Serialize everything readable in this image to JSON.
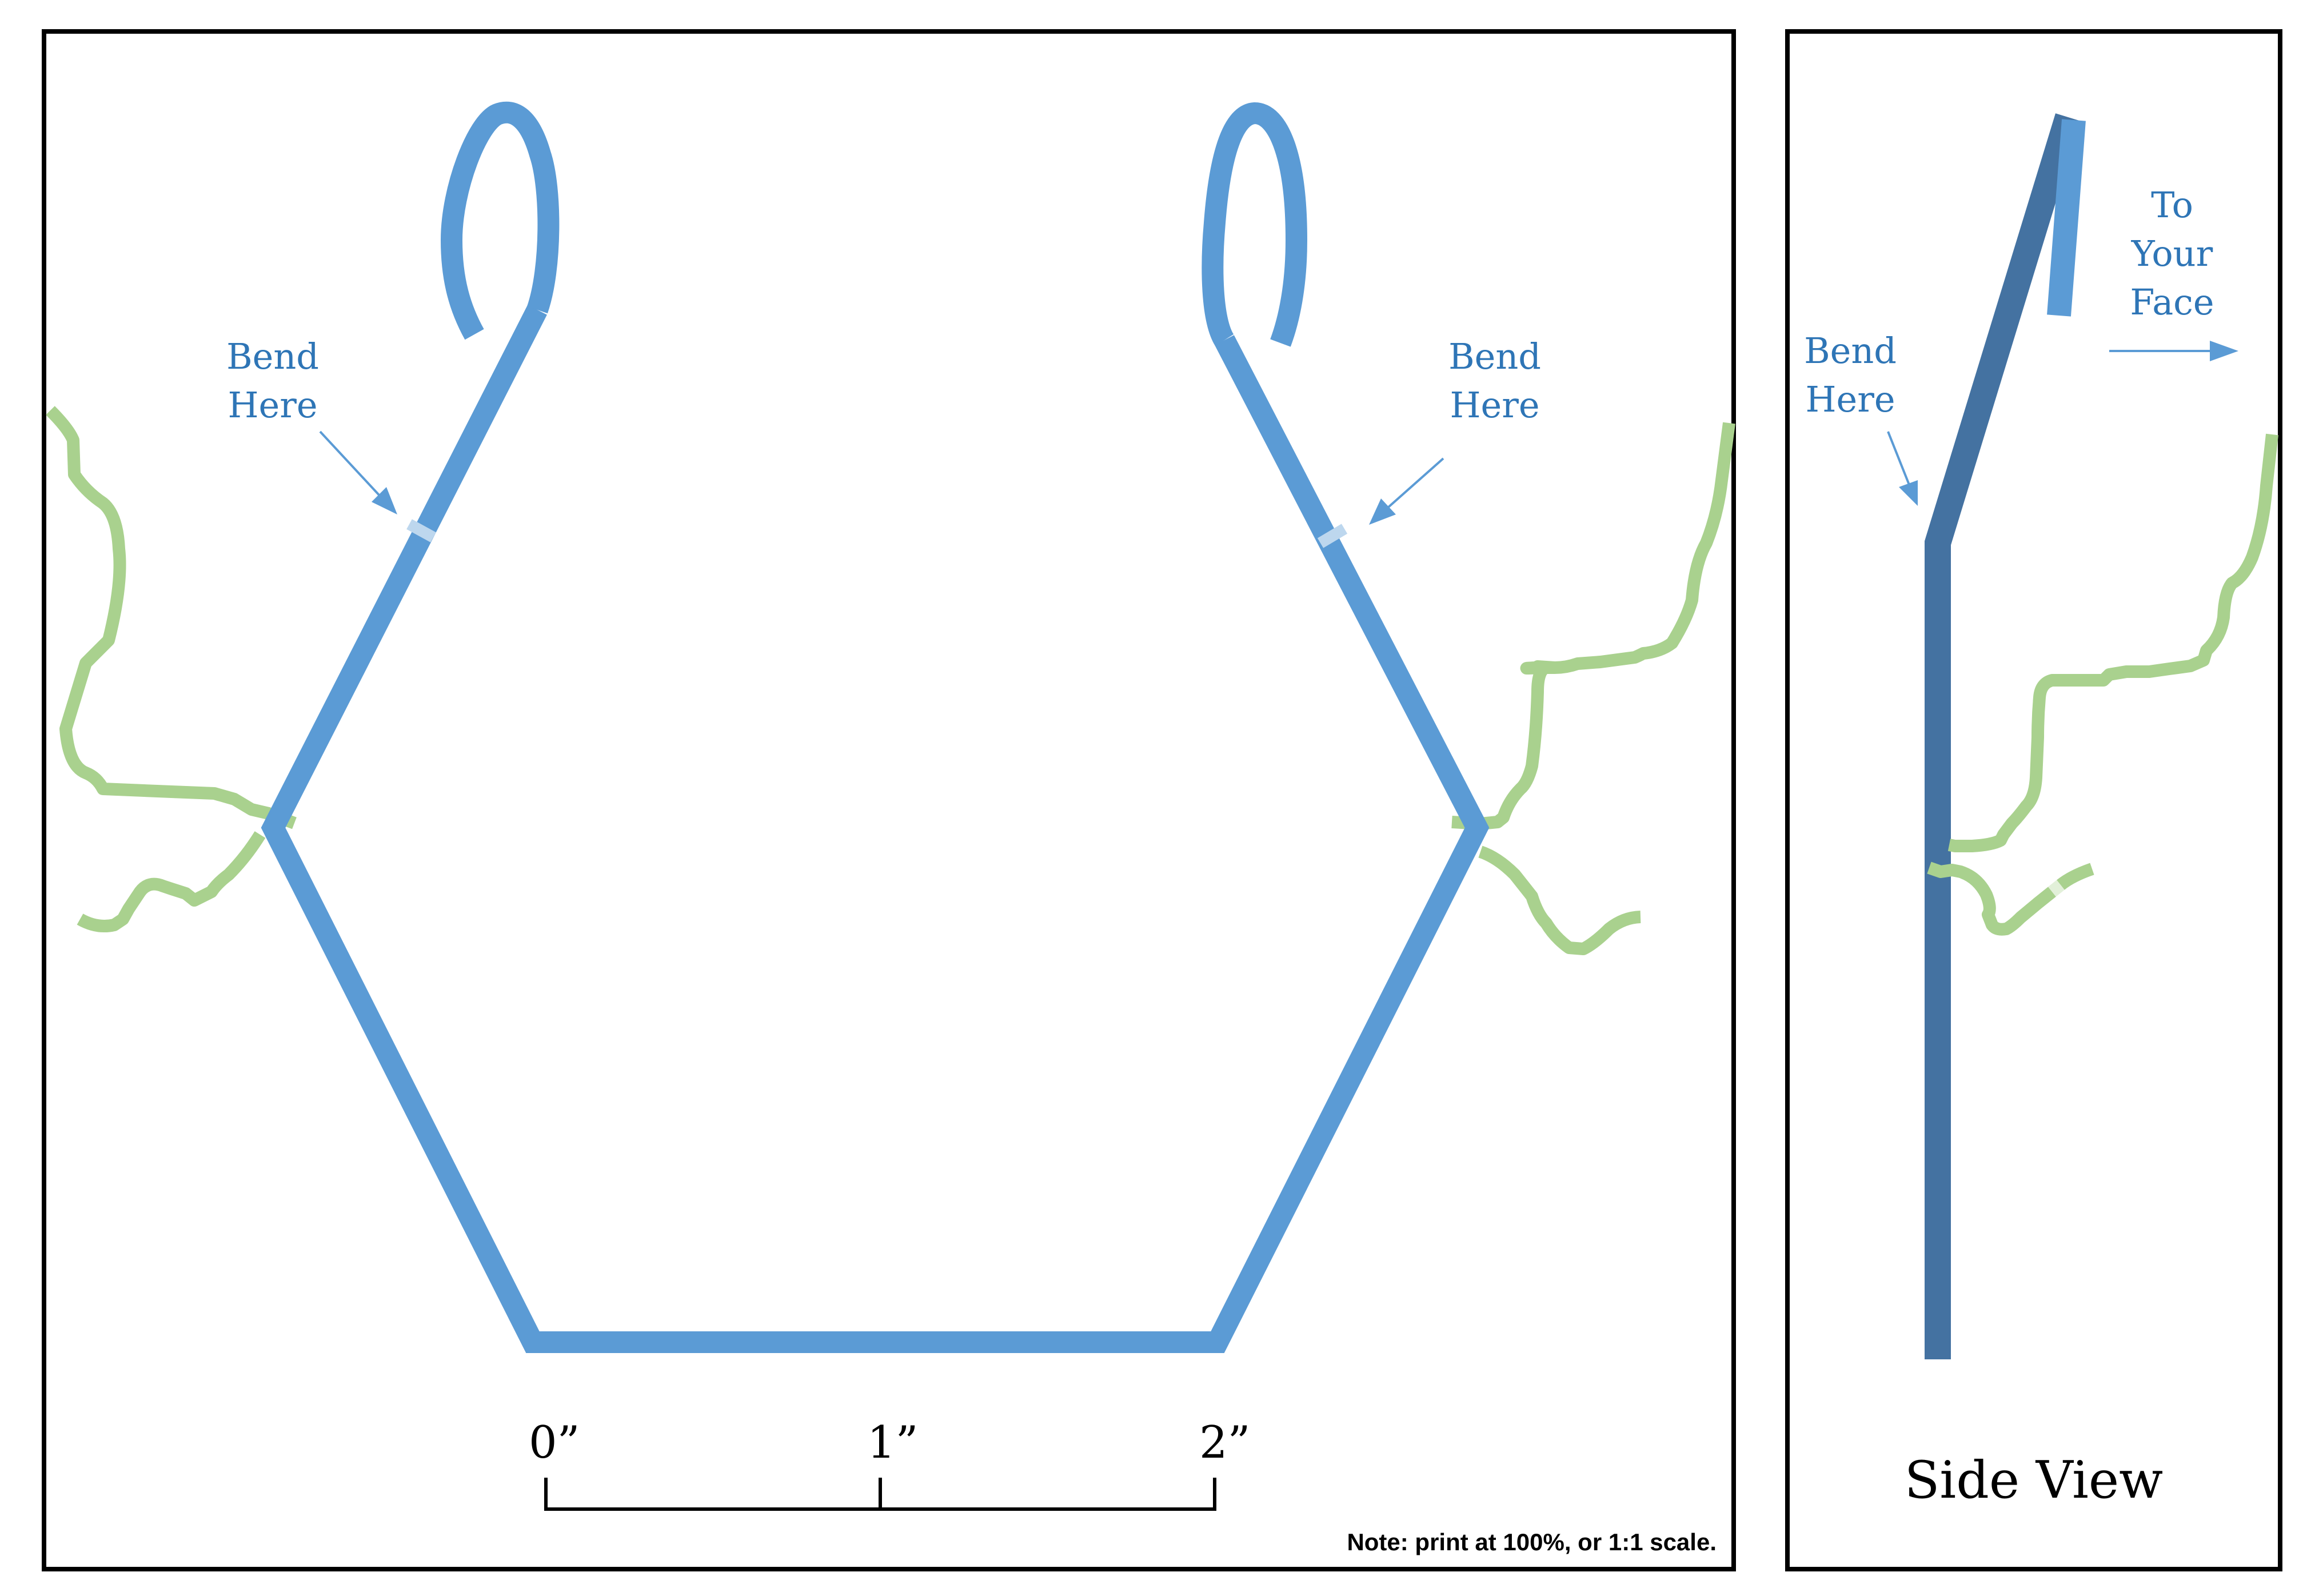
{
  "front_view": {
    "left_label": {
      "line1": "Bend",
      "line2": "Here"
    },
    "right_label": {
      "line1": "Bend",
      "line2": "Here"
    },
    "scale": {
      "tick_0": "0”",
      "tick_1": "1”",
      "tick_2": "2”"
    },
    "note": "Note: print at 100%, or 1:1 scale."
  },
  "side_view": {
    "bend_label": {
      "line1": "Bend",
      "line2": "Here"
    },
    "face_label": {
      "line1": "To",
      "line2": "Your",
      "line3": "Face"
    },
    "title": "Side View"
  },
  "colors": {
    "wire": "#5b9bd5",
    "wire_dark": "#4472a1",
    "string": "#a9d18e",
    "bend_mark": "#bdd7ee",
    "label": "#2e75b6",
    "frame": "#000000"
  }
}
